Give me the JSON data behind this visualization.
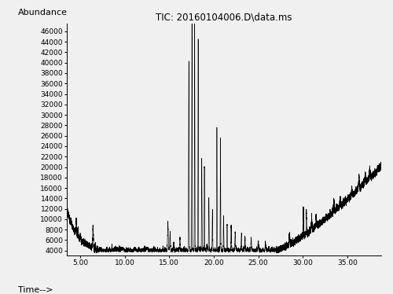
{
  "title": "TIC: 20160104006.D\\data.ms",
  "xlabel": "Time-->",
  "ylabel": "Abundance",
  "xlim": [
    3.5,
    38.8
  ],
  "ylim": [
    3000,
    47500
  ],
  "xticks": [
    5.0,
    10.0,
    15.0,
    20.0,
    25.0,
    30.0,
    35.0
  ],
  "yticks": [
    4000,
    6000,
    8000,
    10000,
    12000,
    14000,
    16000,
    18000,
    20000,
    22000,
    24000,
    26000,
    28000,
    30000,
    32000,
    34000,
    36000,
    38000,
    40000,
    42000,
    44000,
    46000
  ],
  "line_color": "#000000",
  "background_color": "#f0f0f0",
  "title_fontsize": 8.5,
  "axis_label_fontsize": 8,
  "tick_fontsize": 6.5
}
